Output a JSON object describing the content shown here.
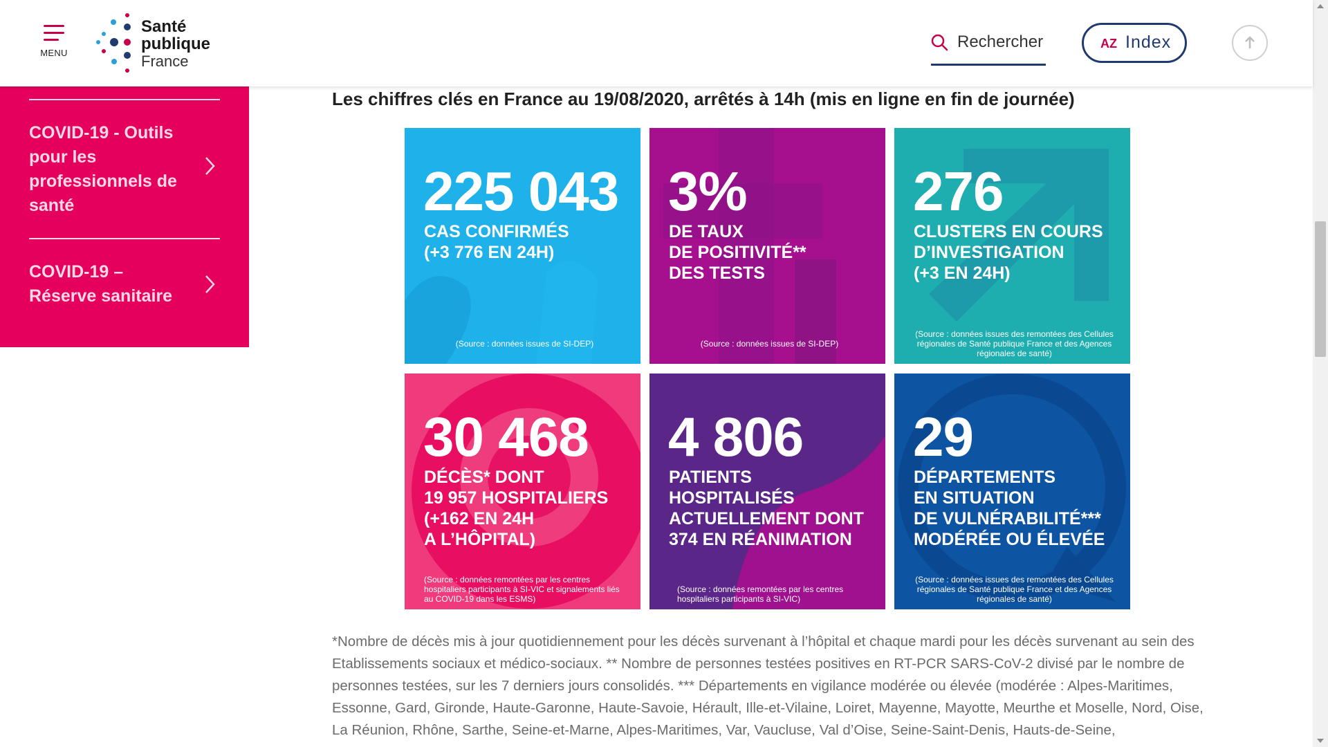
{
  "header": {
    "menu_label": "MENU",
    "logo": {
      "line1": "Santé",
      "line2": "publique",
      "line3": "France"
    },
    "search_label": "Rechercher",
    "index_prefix": "AZ",
    "index_label": "Index",
    "colors": {
      "brand_pink": "#c8004a",
      "brand_navy": "#1f3a6f"
    }
  },
  "sidebar": {
    "items": [
      {
        "label": "COVID-19 - Outils pour les professionnels de santé"
      },
      {
        "label": "COVID-19 – Réserve sanitaire"
      }
    ],
    "background": "#e6005d"
  },
  "main": {
    "title": "Les chiffres clés en France au 19/08/2020, arrêtés à 14h (mis en ligne en fin de journée)",
    "tiles": [
      {
        "number": "225 043",
        "desc_lines": [
          "CAS CONFIRMÉS",
          "(+3 776 EN 24H)"
        ],
        "source": "(Source : données issues de SI-DEP)",
        "color": "#1eb1ea"
      },
      {
        "number": "3%",
        "desc_lines": [
          "DE TAUX",
          "DE POSITIVITÉ**",
          "DES TESTS"
        ],
        "source": "(Source : données issues de SI-DEP)",
        "color": "#a6108f"
      },
      {
        "number": "276",
        "desc_lines": [
          "CLUSTERS EN COURS",
          "D’INVESTIGATION",
          "(+3 EN 24H)"
        ],
        "source": "(Source : données issues des remontées des Cellules régionales de Santé publique France et des Agences régionales de santé)",
        "color": "#1faeaf"
      },
      {
        "number": "30 468",
        "desc_lines": [
          "DÉCÈS* DONT",
          "19 957 HOSPITALIERS",
          "(+162 EN 24H",
          "A L’HÔPITAL)"
        ],
        "source": "(Source : données remontées par les centres hospitaliers participants à SI-VIC et signalements liés au COVID-19 dans les ESMS)",
        "color": "#ef3b7c"
      },
      {
        "number": "4 806",
        "desc_lines": [
          "PATIENTS",
          "HOSPITALISÉS",
          "ACTUELLEMENT DONT",
          "374 EN RÉANIMATION"
        ],
        "source": "(Source : données remontées par les centres hospitaliers participants à SI-VIC)",
        "color": "#5a2688"
      },
      {
        "number": "29",
        "desc_lines": [
          "DÉPARTEMENTS",
          "EN SITUATION",
          "DE VULNÉRABILITÉ***",
          "MODÉRÉE OU ÉLEVÉE"
        ],
        "source": "(Source : données issues des remontées des Cellules régionales de Santé publique France et des Agences régionales de santé)",
        "color": "#0d55a3"
      }
    ],
    "footnote": "*Nombre de décès mis à jour quotidiennement pour les décès survenant à l’hôpital et chaque mardi pour les décès survenant au sein des Etablissements sociaux et médico-sociaux. ** Nombre de personnes testées positives en RT-PCR SARS-CoV-2 divisé par le nombre de personnes testées, sur les 7 derniers jours consolidés. *** Départements en vigilance modérée ou élevée (modérée : Alpes-Maritimes, Essonne, Gard, Gironde, Haute-Garonne, Haute-Savoie, Hérault, Ille-et-Vilaine, Loiret, Mayenne, Mayotte, Meurthe et Moselle, Nord, Oise, La Réunion, Rhône, Sarthe, Seine-et-Marne, Alpes-Maritimes, Var, Vaucluse, Val d’Oise, Seine-Saint-Denis, Hauts-de-Seine,"
  }
}
